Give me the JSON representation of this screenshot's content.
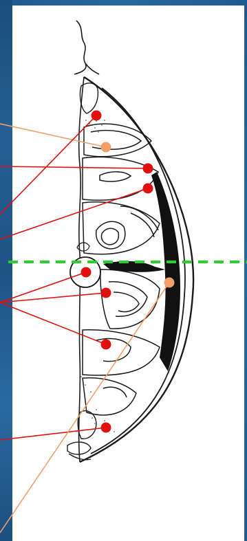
{
  "colors": {
    "background": "#ffffff",
    "frame": "#1f5a8e",
    "ink": "#1a1a1a",
    "red_marker": "#e01010",
    "orange_marker": "#f2a06a",
    "divider": "#27d327"
  },
  "markers": [
    {
      "id": "m1",
      "color": "orange"
    },
    {
      "id": "m2",
      "color": "red"
    },
    {
      "id": "m3",
      "color": "red"
    },
    {
      "id": "m4",
      "color": "red"
    },
    {
      "id": "m5",
      "color": "red"
    },
    {
      "id": "m6",
      "color": "red"
    },
    {
      "id": "m7",
      "color": "red"
    },
    {
      "id": "m8",
      "color": "red"
    },
    {
      "id": "m9",
      "color": "orange"
    }
  ],
  "divider_style": "dashed"
}
